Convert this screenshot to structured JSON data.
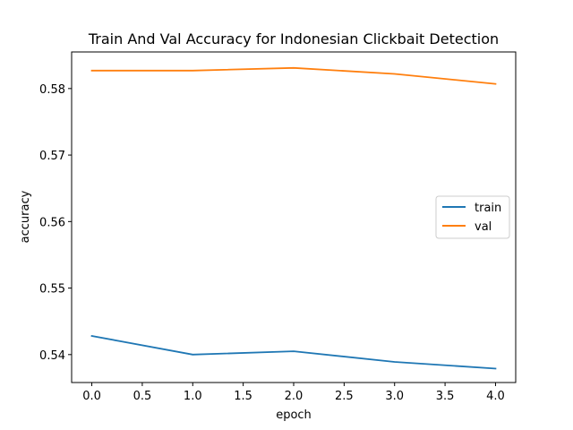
{
  "chart_data": {
    "type": "line",
    "title": "Train And Val Accuracy for Indonesian Clickbait Detection",
    "xlabel": "epoch",
    "ylabel": "accuracy",
    "x": [
      0,
      1,
      2,
      3,
      4
    ],
    "xlim": [
      -0.2,
      4.2
    ],
    "ylim": [
      0.5358,
      0.5855
    ],
    "xticks": [
      0.0,
      0.5,
      1.0,
      1.5,
      2.0,
      2.5,
      3.0,
      3.5,
      4.0
    ],
    "xtick_labels": [
      "0.0",
      "0.5",
      "1.0",
      "1.5",
      "2.0",
      "2.5",
      "3.0",
      "3.5",
      "4.0"
    ],
    "yticks": [
      0.54,
      0.55,
      0.56,
      0.57,
      0.58
    ],
    "ytick_labels": [
      "0.54",
      "0.55",
      "0.56",
      "0.57",
      "0.58"
    ],
    "grid": false,
    "legend_position": "center-right",
    "series": [
      {
        "name": "train",
        "color": "#1f77b4",
        "values": [
          0.5428,
          0.54,
          0.5405,
          0.5389,
          0.5379
        ]
      },
      {
        "name": "val",
        "color": "#ff7f0e",
        "values": [
          0.5827,
          0.5827,
          0.5831,
          0.5822,
          0.5807
        ]
      }
    ]
  }
}
